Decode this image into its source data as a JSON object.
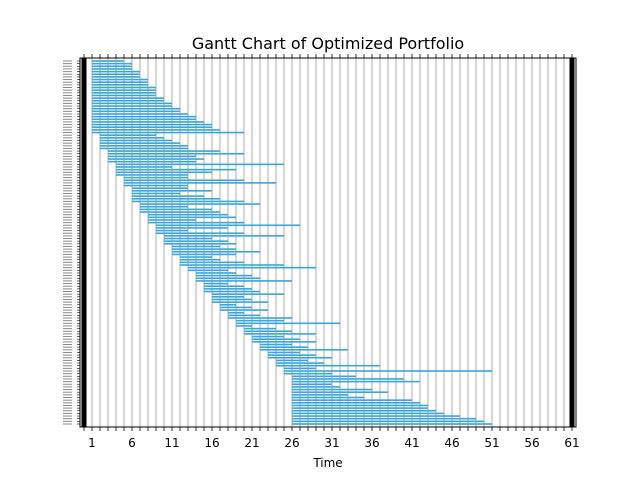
{
  "chart_data": {
    "type": "gantt",
    "title": "Gantt Chart of Optimized Portfolio",
    "xlabel": "Time",
    "ylabel": "",
    "xlim": [
      -0.5,
      61.5
    ],
    "x_ticks": [
      1,
      6,
      11,
      16,
      21,
      26,
      31,
      36,
      41,
      46,
      51,
      56,
      61
    ],
    "vertical_grid_every": 1,
    "grid": true,
    "legend": "none",
    "bar_color": "#3aa5d8",
    "grid_color": "#999999",
    "tasks": [
      {
        "start": 1,
        "end": 5
      },
      {
        "start": 1,
        "end": 6
      },
      {
        "start": 1,
        "end": 6
      },
      {
        "start": 1,
        "end": 6
      },
      {
        "start": 1,
        "end": 7
      },
      {
        "start": 1,
        "end": 7
      },
      {
        "start": 1,
        "end": 7
      },
      {
        "start": 1,
        "end": 8
      },
      {
        "start": 1,
        "end": 8
      },
      {
        "start": 1,
        "end": 8
      },
      {
        "start": 1,
        "end": 9
      },
      {
        "start": 1,
        "end": 9
      },
      {
        "start": 1,
        "end": 9
      },
      {
        "start": 1,
        "end": 9
      },
      {
        "start": 1,
        "end": 10
      },
      {
        "start": 1,
        "end": 10
      },
      {
        "start": 1,
        "end": 11
      },
      {
        "start": 1,
        "end": 11
      },
      {
        "start": 1,
        "end": 12
      },
      {
        "start": 1,
        "end": 12
      },
      {
        "start": 1,
        "end": 13
      },
      {
        "start": 1,
        "end": 14
      },
      {
        "start": 1,
        "end": 14
      },
      {
        "start": 1,
        "end": 15
      },
      {
        "start": 1,
        "end": 16
      },
      {
        "start": 1,
        "end": 16
      },
      {
        "start": 1,
        "end": 17
      },
      {
        "start": 1,
        "end": 20
      },
      {
        "start": 2,
        "end": 9
      },
      {
        "start": 2,
        "end": 10
      },
      {
        "start": 2,
        "end": 11
      },
      {
        "start": 2,
        "end": 12
      },
      {
        "start": 2,
        "end": 13
      },
      {
        "start": 2,
        "end": 13
      },
      {
        "start": 3,
        "end": 17
      },
      {
        "start": 3,
        "end": 20
      },
      {
        "start": 3,
        "end": 14
      },
      {
        "start": 3,
        "end": 15
      },
      {
        "start": 3,
        "end": 14
      },
      {
        "start": 4,
        "end": 25
      },
      {
        "start": 4,
        "end": 11
      },
      {
        "start": 4,
        "end": 19
      },
      {
        "start": 4,
        "end": 16
      },
      {
        "start": 4,
        "end": 13
      },
      {
        "start": 5,
        "end": 13
      },
      {
        "start": 5,
        "end": 20
      },
      {
        "start": 5,
        "end": 24
      },
      {
        "start": 5,
        "end": 13
      },
      {
        "start": 6,
        "end": 13
      },
      {
        "start": 6,
        "end": 16
      },
      {
        "start": 6,
        "end": 12
      },
      {
        "start": 6,
        "end": 15
      },
      {
        "start": 6,
        "end": 17
      },
      {
        "start": 6,
        "end": 20
      },
      {
        "start": 7,
        "end": 22
      },
      {
        "start": 7,
        "end": 13
      },
      {
        "start": 7,
        "end": 16
      },
      {
        "start": 7,
        "end": 17
      },
      {
        "start": 8,
        "end": 18
      },
      {
        "start": 8,
        "end": 19
      },
      {
        "start": 8,
        "end": 14
      },
      {
        "start": 8,
        "end": 20
      },
      {
        "start": 9,
        "end": 27
      },
      {
        "start": 9,
        "end": 18
      },
      {
        "start": 9,
        "end": 13
      },
      {
        "start": 9,
        "end": 20
      },
      {
        "start": 10,
        "end": 25
      },
      {
        "start": 10,
        "end": 16
      },
      {
        "start": 10,
        "end": 18
      },
      {
        "start": 10,
        "end": 19
      },
      {
        "start": 11,
        "end": 17
      },
      {
        "start": 11,
        "end": 19
      },
      {
        "start": 11,
        "end": 22
      },
      {
        "start": 11,
        "end": 19
      },
      {
        "start": 12,
        "end": 16
      },
      {
        "start": 12,
        "end": 17
      },
      {
        "start": 12,
        "end": 20
      },
      {
        "start": 12,
        "end": 25
      },
      {
        "start": 13,
        "end": 29
      },
      {
        "start": 13,
        "end": 18
      },
      {
        "start": 14,
        "end": 19
      },
      {
        "start": 14,
        "end": 21
      },
      {
        "start": 14,
        "end": 22
      },
      {
        "start": 14,
        "end": 26
      },
      {
        "start": 15,
        "end": 18
      },
      {
        "start": 15,
        "end": 20
      },
      {
        "start": 15,
        "end": 21
      },
      {
        "start": 15,
        "end": 22
      },
      {
        "start": 16,
        "end": 25
      },
      {
        "start": 16,
        "end": 20
      },
      {
        "start": 16,
        "end": 21
      },
      {
        "start": 16,
        "end": 23
      },
      {
        "start": 17,
        "end": 19
      },
      {
        "start": 17,
        "end": 21
      },
      {
        "start": 17,
        "end": 23
      },
      {
        "start": 18,
        "end": 20
      },
      {
        "start": 18,
        "end": 22
      },
      {
        "start": 18,
        "end": 26
      },
      {
        "start": 19,
        "end": 25
      },
      {
        "start": 19,
        "end": 32
      },
      {
        "start": 19,
        "end": 21
      },
      {
        "start": 20,
        "end": 24
      },
      {
        "start": 20,
        "end": 26
      },
      {
        "start": 20,
        "end": 29
      },
      {
        "start": 21,
        "end": 25
      },
      {
        "start": 21,
        "end": 27
      },
      {
        "start": 21,
        "end": 29
      },
      {
        "start": 22,
        "end": 26
      },
      {
        "start": 22,
        "end": 28
      },
      {
        "start": 22,
        "end": 33
      },
      {
        "start": 23,
        "end": 27
      },
      {
        "start": 23,
        "end": 29
      },
      {
        "start": 23,
        "end": 31
      },
      {
        "start": 24,
        "end": 28
      },
      {
        "start": 24,
        "end": 30
      },
      {
        "start": 24,
        "end": 37
      },
      {
        "start": 25,
        "end": 29
      },
      {
        "start": 25,
        "end": 51
      },
      {
        "start": 25,
        "end": 31
      },
      {
        "start": 26,
        "end": 34
      },
      {
        "start": 26,
        "end": 40
      },
      {
        "start": 26,
        "end": 42
      },
      {
        "start": 26,
        "end": 31
      },
      {
        "start": 26,
        "end": 32
      },
      {
        "start": 26,
        "end": 36
      },
      {
        "start": 26,
        "end": 38
      },
      {
        "start": 26,
        "end": 33
      },
      {
        "start": 26,
        "end": 35
      },
      {
        "start": 26,
        "end": 41
      },
      {
        "start": 26,
        "end": 42
      },
      {
        "start": 26,
        "end": 43
      },
      {
        "start": 26,
        "end": 43
      },
      {
        "start": 26,
        "end": 44
      },
      {
        "start": 26,
        "end": 45
      },
      {
        "start": 26,
        "end": 47
      },
      {
        "start": 26,
        "end": 49
      },
      {
        "start": 26,
        "end": 50
      },
      {
        "start": 26,
        "end": 51
      }
    ]
  }
}
